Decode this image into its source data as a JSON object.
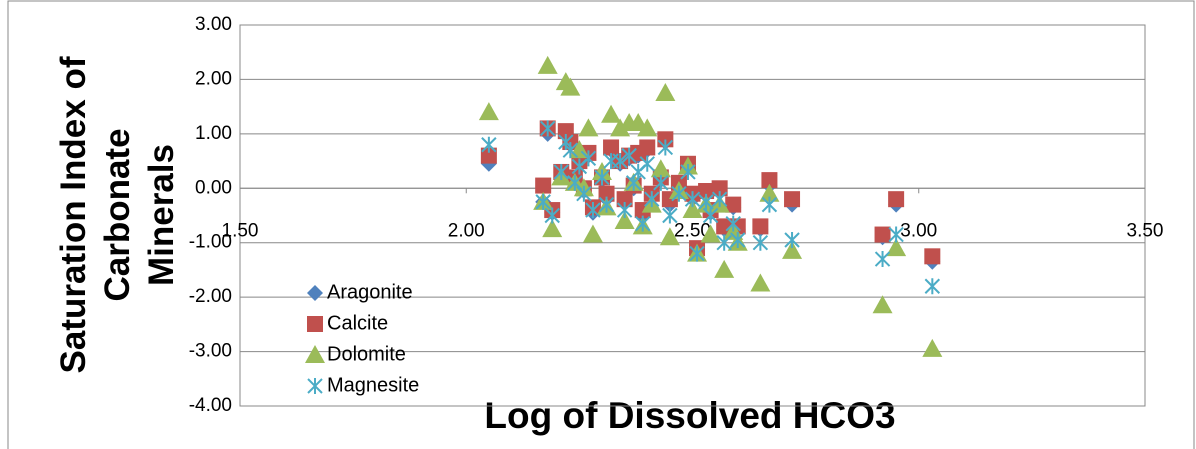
{
  "chart_data": {
    "type": "scatter",
    "x_label": "Log of Dissolved HCO3",
    "y_label": "Saturation Index of Carbonate Minerals",
    "xlim": [
      1.5,
      3.5
    ],
    "xticks": [
      {
        "value": 1.5,
        "label": "1.50"
      },
      {
        "value": 2,
        "label": "2.00"
      },
      {
        "value": 2.5,
        "label": "2.50"
      },
      {
        "value": 3,
        "label": "3.00"
      },
      {
        "value": 3.5,
        "label": "3.50"
      }
    ],
    "ylim": [
      -4,
      3
    ],
    "yticks": [
      {
        "value": 3,
        "label": "3.00"
      },
      {
        "value": 2,
        "label": "2.00"
      },
      {
        "value": 1,
        "label": "1.00"
      },
      {
        "value": 0,
        "label": "0.00"
      },
      {
        "value": -1,
        "label": "-1.00"
      },
      {
        "value": -2,
        "label": "-2.00"
      },
      {
        "value": -3,
        "label": "-3.00"
      },
      {
        "value": -4,
        "label": "-4.00"
      }
    ],
    "grid": true,
    "legend": "left",
    "x": [
      2.05,
      2.18,
      2.17,
      2.19,
      2.21,
      2.22,
      2.23,
      2.24,
      2.25,
      2.26,
      2.27,
      2.28,
      2.3,
      2.31,
      2.32,
      2.34,
      2.35,
      2.36,
      2.37,
      2.38,
      2.39,
      2.4,
      2.41,
      2.43,
      2.44,
      2.45,
      2.47,
      2.49,
      2.5,
      2.51,
      2.53,
      2.54,
      2.56,
      2.57,
      2.59,
      2.6,
      2.65,
      2.67,
      2.72,
      2.92,
      2.95,
      3.03
    ],
    "series": [
      {
        "name": "Aragonite",
        "color": "#4f81bd",
        "marker": "diamond",
        "values": [
          0.45,
          1.0,
          -0.25,
          -0.45,
          0.3,
          1.0,
          0.8,
          0.1,
          0.45,
          -0.05,
          0.6,
          -0.45,
          0.15,
          -0.2,
          0.7,
          0.45,
          -0.25,
          0.55,
          0.0,
          0.6,
          -0.5,
          0.7,
          -0.15,
          0.15,
          0.85,
          -0.3,
          0.0,
          0.4,
          -0.2,
          -1.2,
          -0.1,
          -0.45,
          -0.05,
          -0.75,
          -0.35,
          -0.75,
          -0.75,
          0.05,
          -0.3,
          -0.9,
          -0.3,
          -1.35
        ]
      },
      {
        "name": "Calcite",
        "color": "#c0504d",
        "marker": "square",
        "values": [
          0.6,
          1.1,
          0.05,
          -0.4,
          0.3,
          1.05,
          0.85,
          0.2,
          0.5,
          0.0,
          0.65,
          -0.35,
          0.2,
          -0.1,
          0.75,
          0.5,
          -0.2,
          0.6,
          0.05,
          0.65,
          -0.4,
          0.75,
          -0.1,
          0.2,
          0.9,
          -0.2,
          0.1,
          0.45,
          -0.1,
          -1.1,
          -0.05,
          -0.4,
          0.0,
          -0.7,
          -0.3,
          -0.7,
          -0.7,
          0.15,
          -0.2,
          -0.85,
          -0.2,
          -1.25
        ]
      },
      {
        "name": "Dolomite",
        "color": "#9bbb59",
        "marker": "triangle",
        "values": [
          1.4,
          2.25,
          -0.25,
          -0.75,
          0.2,
          1.95,
          1.85,
          0.1,
          0.7,
          0.0,
          1.1,
          -0.85,
          0.3,
          -0.35,
          1.35,
          1.1,
          -0.6,
          1.2,
          0.1,
          1.2,
          -0.7,
          1.1,
          -0.3,
          0.35,
          1.75,
          -0.9,
          -0.05,
          0.4,
          -0.4,
          -1.2,
          -0.3,
          -0.85,
          -0.3,
          -1.5,
          -0.8,
          -1.0,
          -1.75,
          -0.1,
          -1.15,
          -2.15,
          -1.1,
          -2.95
        ]
      },
      {
        "name": "Magnesite",
        "color": "#4bacc6",
        "marker": "star",
        "values": [
          0.8,
          1.1,
          -0.25,
          -0.5,
          0.3,
          0.85,
          0.7,
          0.1,
          0.4,
          -0.1,
          0.55,
          -0.4,
          0.2,
          -0.3,
          0.5,
          0.5,
          -0.4,
          0.6,
          0.1,
          0.3,
          -0.65,
          0.45,
          -0.2,
          0.1,
          0.75,
          -0.5,
          -0.1,
          0.3,
          -0.2,
          -1.2,
          -0.25,
          -0.5,
          -0.2,
          -1.0,
          -0.65,
          -0.95,
          -1.0,
          -0.3,
          -0.95,
          -1.3,
          -0.85,
          -1.8
        ]
      }
    ]
  }
}
